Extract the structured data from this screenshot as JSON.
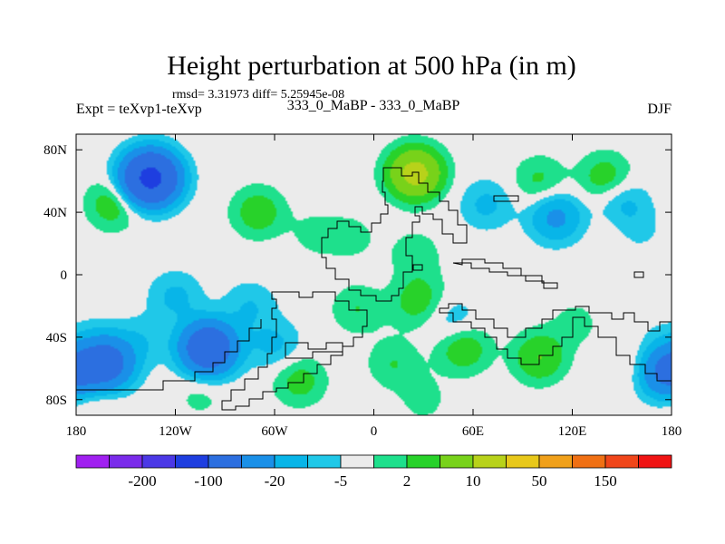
{
  "chart_data": {
    "type": "heatmap",
    "title": "Height perturbation at 500 hPa (in m)",
    "stats_label": "rmsd= 3.31973 diff= 5.25945e-08",
    "left_label": "Expt = teXvp1-teXvp",
    "center_label": "333_0_MaBP - 333_0_MaBP",
    "right_label": "DJF",
    "xlim": [
      -180,
      180
    ],
    "ylim": [
      -90,
      90
    ],
    "x_ticks": [
      {
        "value": -180,
        "label": "180"
      },
      {
        "value": -120,
        "label": "120W"
      },
      {
        "value": -60,
        "label": "60W"
      },
      {
        "value": 0,
        "label": "0"
      },
      {
        "value": 60,
        "label": "60E"
      },
      {
        "value": 120,
        "label": "120E"
      },
      {
        "value": 180,
        "label": "180"
      }
    ],
    "y_ticks": [
      {
        "value": 80,
        "label": "80N"
      },
      {
        "value": 40,
        "label": "40N"
      },
      {
        "value": 0,
        "label": "0"
      },
      {
        "value": -40,
        "label": "40S"
      },
      {
        "value": -80,
        "label": "80S"
      }
    ],
    "colorbar": {
      "colors": [
        "#a020f0",
        "#7a2bea",
        "#4b38e6",
        "#1e3ee0",
        "#2c6fe0",
        "#1a90e8",
        "#08b5e8",
        "#20c8e8",
        "#ebebeb",
        "#1ee08c",
        "#28d22a",
        "#78d21a",
        "#b8d21a",
        "#e8c81a",
        "#f0a01a",
        "#f07014",
        "#f0461a",
        "#f01414"
      ],
      "labels": [
        {
          "value": "-200",
          "after_index": 1
        },
        {
          "value": "-100",
          "after_index": 3
        },
        {
          "value": "-20",
          "after_index": 5
        },
        {
          "value": "-5",
          "after_index": 7
        },
        {
          "value": "2",
          "after_index": 9
        },
        {
          "value": "10",
          "after_index": 11
        },
        {
          "value": "50",
          "after_index": 13
        },
        {
          "value": "150",
          "after_index": 15
        }
      ]
    },
    "background_color": "#ebebeb",
    "anomalies": [
      {
        "lon": -135,
        "lat": 62,
        "value": -60
      },
      {
        "lon": -158,
        "lat": 45,
        "value": 8
      },
      {
        "lon": -70,
        "lat": 40,
        "value": 8
      },
      {
        "lon": 25,
        "lat": 65,
        "value": 25
      },
      {
        "lon": 100,
        "lat": 60,
        "value": 6
      },
      {
        "lon": 110,
        "lat": 37,
        "value": -12
      },
      {
        "lon": 150,
        "lat": 46,
        "value": -7
      },
      {
        "lon": 158,
        "lat": 30,
        "value": -4
      },
      {
        "lon": 140,
        "lat": 62,
        "value": 8
      },
      {
        "lon": 68,
        "lat": 45,
        "value": -6
      },
      {
        "lon": 150,
        "lat": 33,
        "value": 3
      },
      {
        "lon": -35,
        "lat": 26,
        "value": 3
      },
      {
        "lon": -13,
        "lat": 24,
        "value": 3
      },
      {
        "lon": -120,
        "lat": -14,
        "value": -6
      },
      {
        "lon": -75,
        "lat": -20,
        "value": -5
      },
      {
        "lon": -10,
        "lat": -22,
        "value": 5
      },
      {
        "lon": 25,
        "lat": -19,
        "value": 5
      },
      {
        "lon": 25,
        "lat": 13,
        "value": 4
      },
      {
        "lon": 30,
        "lat": -12,
        "value": 3
      },
      {
        "lon": 48,
        "lat": -30,
        "value": -5
      },
      {
        "lon": 54,
        "lat": -47,
        "value": 9
      },
      {
        "lon": 100,
        "lat": -53,
        "value": 10
      },
      {
        "lon": 12,
        "lat": -57,
        "value": 5
      },
      {
        "lon": -100,
        "lat": -47,
        "value": -40
      },
      {
        "lon": -60,
        "lat": -45,
        "value": -6
      },
      {
        "lon": -162,
        "lat": -57,
        "value": -30
      },
      {
        "lon": -140,
        "lat": -42,
        "value": -4
      },
      {
        "lon": 177,
        "lat": -62,
        "value": -25
      },
      {
        "lon": -45,
        "lat": -68,
        "value": 7
      },
      {
        "lon": -105,
        "lat": -77,
        "value": 3
      },
      {
        "lon": 30,
        "lat": -80,
        "value": 3
      },
      {
        "lon": -170,
        "lat": -40,
        "value": -3
      },
      {
        "lon": 175,
        "lat": -40,
        "value": -3
      },
      {
        "lon": 157,
        "lat": -57,
        "value": 3
      },
      {
        "lon": 122,
        "lat": -31,
        "value": 3
      },
      {
        "lon": -178,
        "lat": -40,
        "value": 3
      },
      {
        "lon": -168,
        "lat": -84,
        "value": 3
      }
    ]
  }
}
